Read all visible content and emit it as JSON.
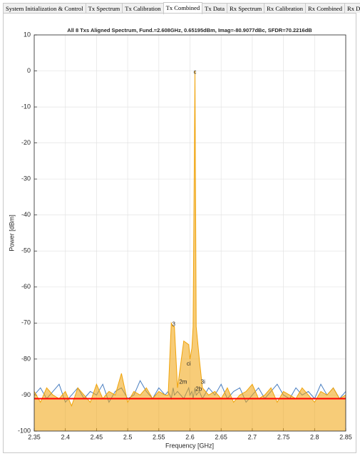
{
  "tabs": [
    "System Initialization & Control",
    "Tx Spectrum",
    "Tx Calibration",
    "Tx Combined",
    "Tx Data",
    "Rx Spectrum",
    "Rx Calibration",
    "Rx Combined",
    "Rx Data"
  ],
  "active_tab": 3,
  "chart_data": {
    "type": "line",
    "title": "All 8 Txs Aligned Spectrum, Fund.=2.608GHz, 0.65195dBm, Imag=-80.9077dBc, SFDR=70.2216dB",
    "xlabel": "Frequency [GHz]",
    "ylabel": "Power [dBm]",
    "x": [
      2.35,
      2.36,
      2.37,
      2.38,
      2.39,
      2.4,
      2.41,
      2.42,
      2.43,
      2.44,
      2.45,
      2.46,
      2.47,
      2.48,
      2.49,
      2.5,
      2.51,
      2.52,
      2.53,
      2.54,
      2.55,
      2.56,
      2.565,
      2.57,
      2.573,
      2.575,
      2.58,
      2.59,
      2.598,
      2.6,
      2.603,
      2.605,
      2.608,
      2.61,
      2.615,
      2.62,
      2.63,
      2.64,
      2.65,
      2.66,
      2.67,
      2.68,
      2.69,
      2.7,
      2.71,
      2.72,
      2.73,
      2.74,
      2.75,
      2.76,
      2.77,
      2.78,
      2.79,
      2.8,
      2.81,
      2.82,
      2.83,
      2.84,
      2.85
    ],
    "series": [
      {
        "color": "#4a7fc1",
        "values": [
          -90,
          -88,
          -91,
          -89,
          -87,
          -92,
          -90,
          -88,
          -91,
          -89,
          -90,
          -87,
          -92,
          -89,
          -88,
          -91,
          -90,
          -86,
          -89,
          -91,
          -88,
          -90,
          -89,
          -91,
          -88,
          -90,
          -89,
          -91,
          -88,
          -90,
          -89,
          -91,
          -88,
          -90,
          -89,
          -91,
          -88,
          -90,
          -87,
          -91,
          -89,
          -88,
          -92,
          -90,
          -88,
          -91,
          -89,
          -87,
          -90,
          -91,
          -88,
          -90,
          -89,
          -91,
          -87,
          -90,
          -88,
          -91,
          -89
        ]
      },
      {
        "color": "#f0a30a",
        "fill": true,
        "values": [
          -89,
          -92,
          -88,
          -90,
          -91,
          -89,
          -93,
          -88,
          -90,
          -92,
          -87,
          -91,
          -89,
          -90,
          -84,
          -92,
          -89,
          -90,
          -88,
          -91,
          -89,
          -90,
          -90,
          -70,
          -71,
          -71,
          -88,
          -75,
          -76,
          -80,
          -77,
          -71,
          0,
          -71,
          -80,
          -88,
          -90,
          -89,
          -91,
          -88,
          -92,
          -90,
          -89,
          -87,
          -91,
          -90,
          -88,
          -92,
          -89,
          -90,
          -91,
          -88,
          -90,
          -92,
          -89,
          -90,
          -88,
          -91,
          -90
        ]
      }
    ],
    "reference_line": {
      "value": -91,
      "color": "#ff0000"
    },
    "annotations": [
      {
        "text": "c",
        "x": 2.608,
        "y": 0
      },
      {
        "text": "3",
        "x": 2.574,
        "y": -70
      },
      {
        "text": "ci",
        "x": 2.598,
        "y": -81
      },
      {
        "text": "2m",
        "x": 2.589,
        "y": -86
      },
      {
        "text": "3i",
        "x": 2.621,
        "y": -86
      },
      {
        "text": "2b",
        "x": 2.614,
        "y": -88
      }
    ],
    "xlim": [
      2.35,
      2.85
    ],
    "xticks": [
      2.35,
      2.4,
      2.45,
      2.5,
      2.55,
      2.6,
      2.65,
      2.7,
      2.75,
      2.8,
      2.85
    ],
    "ylim": [
      -100,
      10
    ],
    "yticks": [
      -100,
      -90,
      -80,
      -70,
      -60,
      -50,
      -40,
      -30,
      -20,
      -10,
      0,
      10
    ],
    "grid": true
  }
}
